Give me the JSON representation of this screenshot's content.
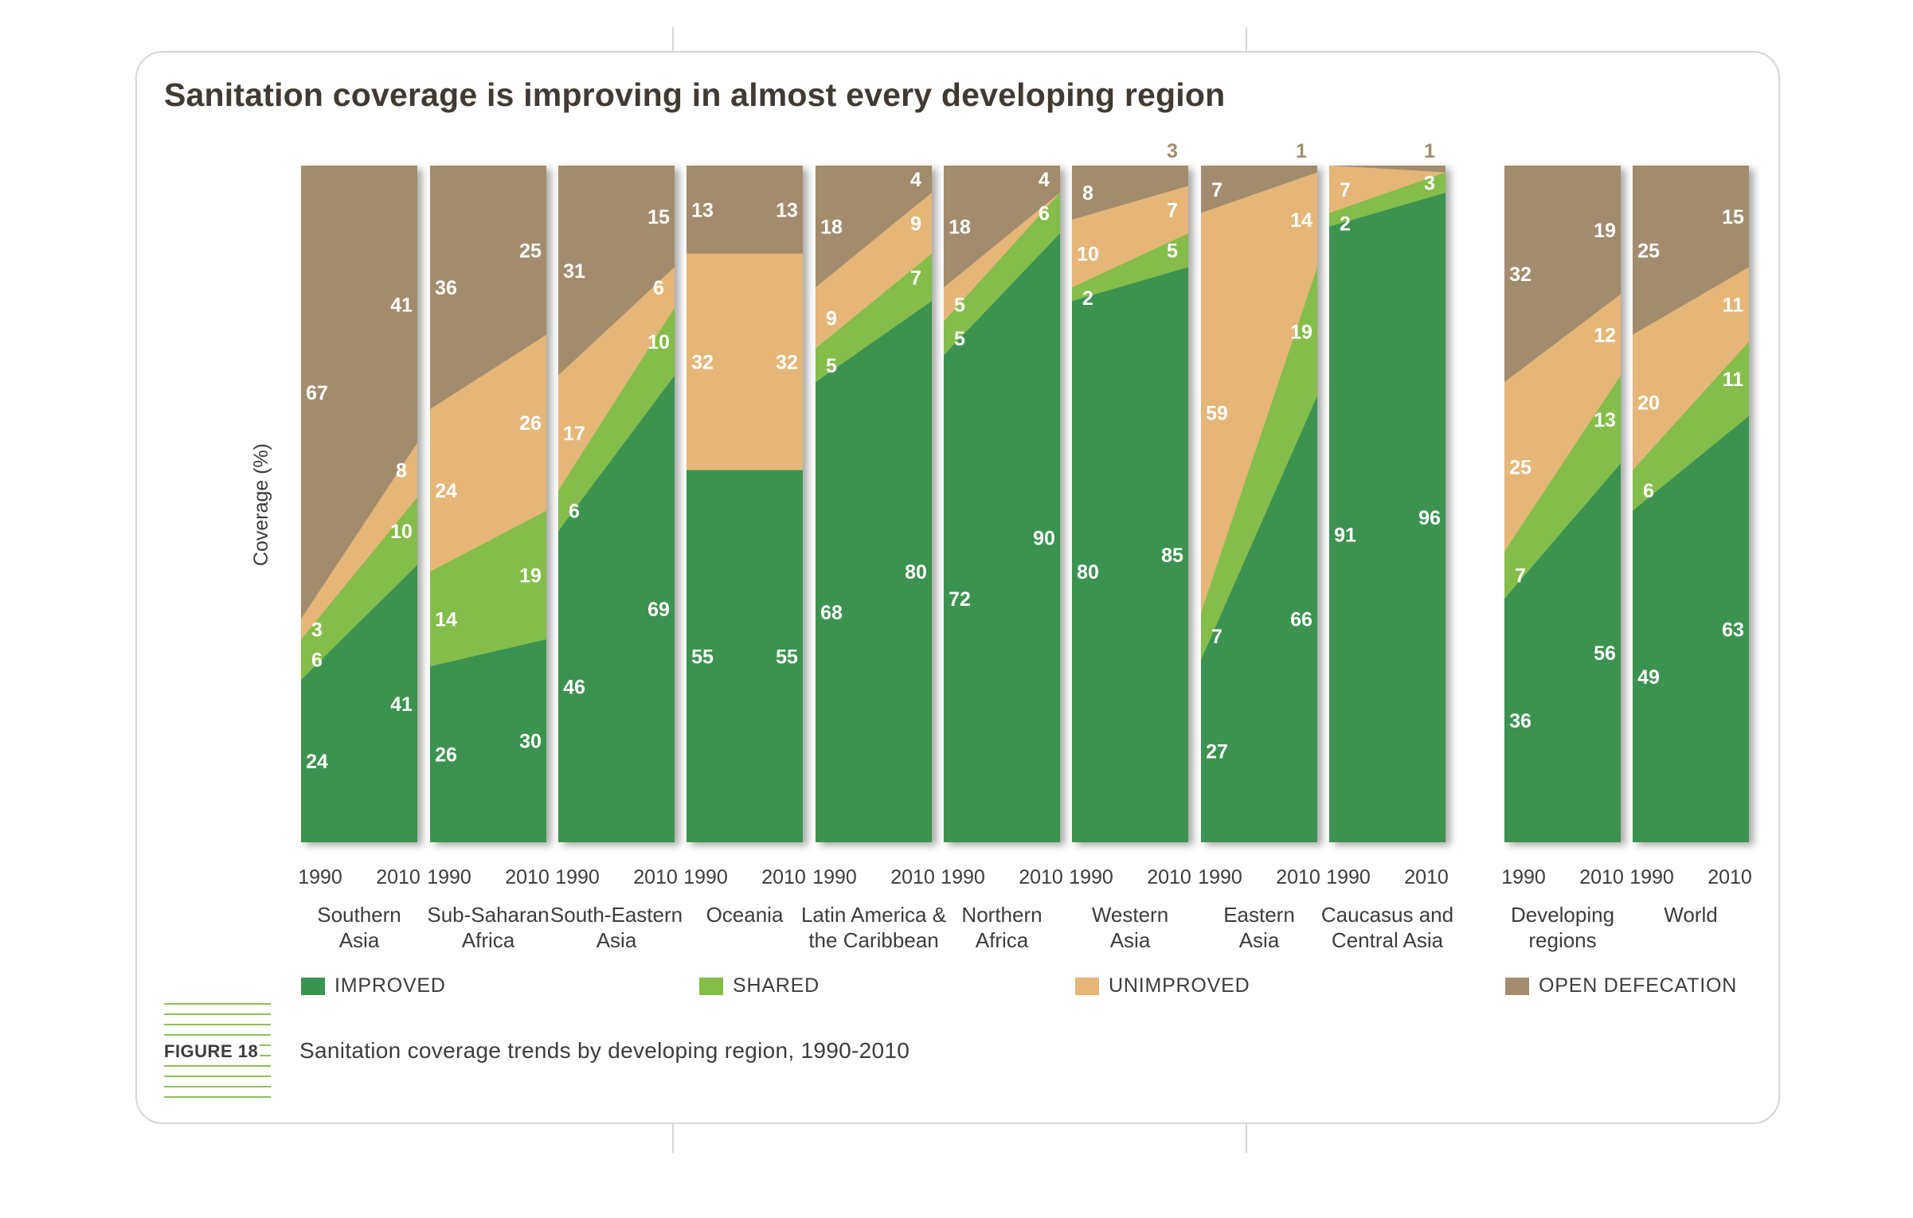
{
  "title": "Sanitation coverage is improving in almost every developing region",
  "figure": {
    "label": "FIGURE 18",
    "caption": "Sanitation coverage trends by developing region, 1990-2010"
  },
  "legend": [
    {
      "label": "IMPROVED",
      "color": "#3a9350"
    },
    {
      "label": "SHARED",
      "color": "#84bd48"
    },
    {
      "label": "UNIMPROVED",
      "color": "#e5b677"
    },
    {
      "label": "OPEN DEFECATION",
      "color": "#a38c6d"
    }
  ],
  "chart_data": {
    "type": "area",
    "ylabel": "Coverage (%)",
    "ylim": [
      0,
      100
    ],
    "years": [
      "1990",
      "2010"
    ],
    "series_order": [
      "IMPROVED",
      "SHARED",
      "UNIMPROVED",
      "OPEN DEFECATION"
    ],
    "colors": {
      "IMPROVED": "#3a9350",
      "SHARED": "#84bd48",
      "UNIMPROVED": "#e5b677",
      "OPEN DEFECATION": "#a38c6d"
    },
    "panels": [
      {
        "region": [
          "Southern",
          "Asia"
        ],
        "y1990": [
          24,
          6,
          3,
          67
        ],
        "y2010": [
          41,
          10,
          8,
          41
        ]
      },
      {
        "region": [
          "Sub-Saharan",
          "Africa"
        ],
        "y1990": [
          26,
          14,
          24,
          36
        ],
        "y2010": [
          30,
          19,
          26,
          25
        ]
      },
      {
        "region": [
          "South-Eastern",
          "Asia"
        ],
        "y1990": [
          46,
          6,
          17,
          31
        ],
        "y2010": [
          69,
          10,
          6,
          15
        ]
      },
      {
        "region": [
          "Oceania",
          ""
        ],
        "y1990": [
          55,
          0,
          32,
          13
        ],
        "y2010": [
          55,
          0,
          32,
          13
        ]
      },
      {
        "region": [
          "Latin America &",
          "the Caribbean"
        ],
        "y1990": [
          68,
          5,
          9,
          18
        ],
        "y2010": [
          80,
          7,
          9,
          4
        ]
      },
      {
        "region": [
          "Northern",
          "Africa"
        ],
        "y1990": [
          72,
          5,
          5,
          18
        ],
        "y2010": [
          90,
          6,
          0,
          4
        ]
      },
      {
        "region": [
          "Western",
          "Asia"
        ],
        "y1990": [
          80,
          2,
          10,
          8
        ],
        "y2010": [
          85,
          5,
          7,
          3
        ]
      },
      {
        "region": [
          "Eastern",
          "Asia"
        ],
        "y1990": [
          27,
          7,
          59,
          7
        ],
        "y2010": [
          66,
          19,
          14,
          1
        ]
      },
      {
        "region": [
          "Caucasus and",
          "Central Asia"
        ],
        "y1990": [
          91,
          2,
          7,
          0
        ],
        "y2010": [
          96,
          3,
          0,
          1
        ]
      },
      {
        "region": [
          "Developing",
          "regions"
        ],
        "y1990": [
          36,
          7,
          25,
          32
        ],
        "y2010": [
          56,
          13,
          12,
          19
        ]
      },
      {
        "region": [
          "World",
          ""
        ],
        "y1990": [
          49,
          6,
          20,
          25
        ],
        "y2010": [
          63,
          11,
          11,
          15
        ]
      }
    ]
  }
}
